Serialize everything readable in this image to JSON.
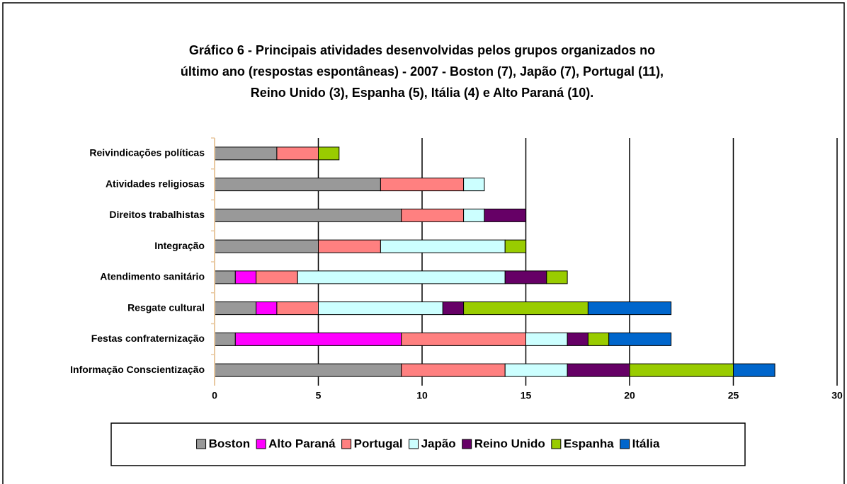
{
  "chart_data": {
    "type": "stacked_barh",
    "title": [
      "Gráfico 6 - Principais atividades desenvolvidas pelos grupos organizados no",
      "último ano (respostas espontâneas) - 2007 - Boston (7), Japão (7), Portugal (11),",
      "Reino Unido (3), Espanha (5), Itália (4) e Alto Paraná (10)."
    ],
    "categories": [
      "Reivindicações políticas",
      "Atividades religiosas",
      "Direitos trabalhistas",
      "Integração",
      "Atendimento sanitário",
      "Resgate cultural",
      "Festas confraternização",
      "Informação Conscientização"
    ],
    "series": [
      {
        "name": "Boston",
        "color": "#999999",
        "values": [
          3,
          8,
          9,
          5,
          1,
          2,
          1,
          9
        ]
      },
      {
        "name": "Alto Paraná",
        "color": "#ff00ff",
        "values": [
          0,
          0,
          0,
          0,
          1,
          1,
          8,
          0
        ]
      },
      {
        "name": "Portugal",
        "color": "#ff8080",
        "values": [
          2,
          4,
          3,
          3,
          2,
          2,
          6,
          5
        ]
      },
      {
        "name": "Japão",
        "color": "#ccffff",
        "values": [
          0,
          1,
          1,
          6,
          10,
          6,
          2,
          3
        ]
      },
      {
        "name": "Reino Unido",
        "color": "#660066",
        "values": [
          0,
          0,
          2,
          0,
          2,
          1,
          1,
          3
        ]
      },
      {
        "name": "Espanha",
        "color": "#99cc00",
        "values": [
          1,
          0,
          0,
          1,
          1,
          6,
          1,
          5
        ]
      },
      {
        "name": "Itália",
        "color": "#0066cc",
        "values": [
          0,
          0,
          0,
          0,
          0,
          4,
          3,
          2
        ]
      }
    ],
    "xlim": [
      0,
      30
    ],
    "xticks": [
      0,
      5,
      10,
      15,
      20,
      25,
      30
    ],
    "grid": true,
    "legend": "bottom"
  }
}
